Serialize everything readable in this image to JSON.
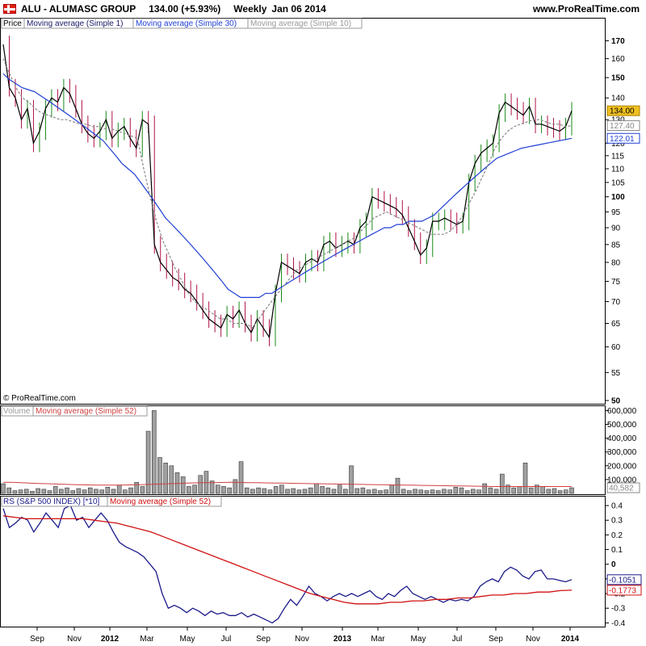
{
  "header": {
    "symbol_line": "ALU - ALUMASC GROUP",
    "price_change": "134.00 (+5.93%)",
    "period": "Weekly",
    "date": "Jan 06 2014",
    "site": "www.ProRealTime.com"
  },
  "watermark": "© ProRealTime.com",
  "legends": {
    "price": [
      "Price",
      "Moving average (Simple 1)",
      "Moving average (Simple 30)",
      "Moving average (Simple 10)"
    ],
    "volume": [
      "Volume",
      "Moving average (Simple 52)"
    ],
    "rs": [
      "RS (S&P 500 INDEX) [*10]",
      "Moving average (Simple 52)"
    ]
  },
  "colors": {
    "up": "#1a8a1a",
    "down": "#b0124a",
    "ma1": "#000000",
    "ma30": "#1f3fd6",
    "ma10": "#888888",
    "rs": "#1a1a8a",
    "rs_ma": "#d01010",
    "vol_bar": "#a0a0a0",
    "vol_ma": "#d04040",
    "last_price_bg": "#f0c020"
  },
  "chart_data": [
    {
      "type": "line",
      "title": "ALU - ALUMASC GROUP",
      "scale": "log",
      "ylim": [
        50,
        175
      ],
      "y_ticks": [
        50,
        55,
        60,
        65,
        70,
        75,
        80,
        85,
        90,
        95,
        100,
        105,
        110,
        115,
        120,
        130,
        140,
        150,
        160,
        170
      ],
      "x_ticks": [
        "Sep",
        "Nov",
        "2012",
        "Mar",
        "May",
        "Jul",
        "Sep",
        "Nov",
        "2013",
        "Mar",
        "May",
        "Jul",
        "Sep",
        "Nov",
        "2014"
      ],
      "last_value_labels": [
        "134.00",
        "127.40",
        "122.01"
      ],
      "series": [
        {
          "name": "Moving average (Simple 1)",
          "values": [
            168,
            145,
            140,
            130,
            135,
            120,
            125,
            135,
            140,
            138,
            145,
            142,
            135,
            128,
            124,
            122,
            125,
            130,
            122,
            125,
            127,
            122,
            118,
            130,
            128,
            85,
            80,
            78,
            76,
            75,
            73,
            72,
            70,
            68,
            66,
            65,
            64,
            67,
            66,
            68,
            65,
            63,
            66,
            64,
            62,
            72,
            80,
            79,
            78,
            77,
            80,
            81,
            80,
            85,
            86,
            84,
            85,
            86,
            85,
            90,
            92,
            100,
            99,
            98,
            97,
            96,
            94,
            90,
            86,
            82,
            84,
            92,
            92,
            93,
            92,
            91,
            92,
            105,
            112,
            116,
            118,
            120,
            133,
            138,
            136,
            134,
            132,
            136,
            128,
            128,
            127,
            126,
            125,
            127,
            134
          ]
        },
        {
          "name": "Moving average (Simple 30)",
          "values": [
            152,
            149,
            147,
            145,
            144,
            143,
            141,
            139,
            137,
            135,
            133,
            131,
            129,
            127,
            125,
            123,
            121,
            118,
            115,
            112,
            110,
            108,
            105,
            102,
            99,
            96,
            93,
            91,
            89,
            87,
            85,
            83,
            81,
            79,
            77,
            75,
            73,
            72,
            71,
            71,
            71,
            71,
            72,
            72,
            73,
            74,
            75,
            76,
            77,
            78,
            79,
            80,
            81,
            82,
            83,
            84,
            85,
            86,
            87,
            88,
            89,
            90,
            90,
            91,
            91,
            92,
            92,
            92,
            93,
            94,
            96,
            98,
            100,
            102,
            104,
            106,
            108,
            110,
            112,
            114,
            115,
            116,
            117,
            118,
            118.5,
            119,
            119.5,
            120,
            120.5,
            121,
            121.5,
            122.01
          ]
        },
        {
          "name": "Moving average (Simple 10)",
          "values": [
            160,
            152,
            145,
            140,
            138,
            135,
            133,
            132,
            131,
            130,
            130,
            129,
            128,
            128,
            127,
            127,
            126,
            126,
            125,
            124,
            123,
            122,
            110,
            100,
            92,
            86,
            82,
            78,
            75,
            72,
            70,
            69,
            68,
            67,
            66,
            66,
            65,
            65,
            65,
            64,
            66,
            68,
            70,
            72,
            74,
            76,
            78,
            79,
            80,
            81,
            82,
            83,
            84,
            85,
            86,
            87,
            89,
            91,
            93,
            94,
            95,
            94,
            93,
            92,
            91,
            90,
            89,
            88,
            88,
            88,
            89,
            91,
            94,
            98,
            102,
            107,
            112,
            118,
            122,
            125,
            127,
            128,
            129,
            130,
            130,
            129,
            128,
            128,
            127,
            127.4
          ]
        }
      ]
    },
    {
      "type": "bar",
      "title": "Volume",
      "ylim": [
        0,
        620000
      ],
      "y_ticks": [
        100000,
        200000,
        300000,
        400000,
        500000,
        600000
      ],
      "y_tick_labels": [
        "100,000",
        "200,000",
        "300,000",
        "400,000",
        "500,000",
        "600,000"
      ],
      "last_value_labels": [
        "40,582"
      ],
      "series": [
        {
          "name": "Volume",
          "values": [
            70000,
            40000,
            20000,
            25000,
            30000,
            15000,
            35000,
            30000,
            20000,
            50000,
            30000,
            40000,
            20000,
            35000,
            25000,
            40000,
            30000,
            25000,
            45000,
            30000,
            60000,
            25000,
            40000,
            80000,
            50000,
            450000,
            600000,
            260000,
            220000,
            200000,
            150000,
            120000,
            50000,
            60000,
            130000,
            160000,
            90000,
            60000,
            50000,
            40000,
            100000,
            230000,
            40000,
            30000,
            40000,
            35000,
            25000,
            50000,
            60000,
            30000,
            35000,
            25000,
            30000,
            40000,
            70000,
            50000,
            40000,
            30000,
            60000,
            30000,
            200000,
            35000,
            40000,
            25000,
            30000,
            20000,
            25000,
            60000,
            110000,
            30000,
            20000,
            30000,
            25000,
            20000,
            25000,
            20000,
            30000,
            25000,
            45000,
            40000,
            20000,
            30000,
            25000,
            70000,
            40000,
            30000,
            140000,
            60000,
            40000,
            50000,
            220000,
            40000,
            60000,
            50000,
            30000,
            35000,
            20000,
            25000,
            40582
          ]
        },
        {
          "name": "Moving average (Simple 52)",
          "values": [
            80000,
            80000,
            78000,
            75000,
            72000,
            70000,
            68000,
            66000,
            64000,
            62000,
            61000,
            60000,
            60000,
            60000,
            61000,
            62000,
            64000,
            66000,
            68000,
            70000,
            72000,
            74000,
            76000,
            77000,
            78000,
            79000,
            80000,
            79000,
            78000,
            77000,
            76000,
            75000,
            74000,
            73000,
            72000,
            71000,
            70000,
            69000,
            68000,
            67000,
            66000,
            65000,
            64000,
            63000,
            62000,
            61000,
            60000,
            59000,
            58000,
            57000,
            56000,
            55000,
            54000,
            53000,
            52000,
            51000,
            50000,
            50000,
            50000,
            50000,
            50000,
            50000,
            50000,
            50000,
            50000,
            50000
          ]
        }
      ]
    },
    {
      "type": "line",
      "title": "RS (S&P 500 INDEX) [*10]",
      "ylim": [
        -0.42,
        0.45
      ],
      "y_ticks": [
        -0.4,
        -0.3,
        -0.2,
        -0.1,
        0,
        0.1,
        0.2,
        0.3,
        0.4
      ],
      "y_tick_labels": [
        "-0.4",
        "-0.3",
        "-0.2",
        "-0.1",
        "0",
        "0.1",
        "0.2",
        "0.3",
        "0.4"
      ],
      "last_value_labels": [
        "-0.1051",
        "-0.1773"
      ],
      "series": [
        {
          "name": "RS (S&P 500 INDEX) [*10]",
          "values": [
            0.38,
            0.25,
            0.28,
            0.32,
            0.3,
            0.22,
            0.28,
            0.35,
            0.3,
            0.25,
            0.38,
            0.4,
            0.3,
            0.32,
            0.25,
            0.3,
            0.35,
            0.3,
            0.22,
            0.15,
            0.12,
            0.1,
            0.08,
            0.05,
            0.0,
            -0.05,
            -0.2,
            -0.3,
            -0.28,
            -0.3,
            -0.33,
            -0.3,
            -0.32,
            -0.35,
            -0.32,
            -0.34,
            -0.33,
            -0.35,
            -0.35,
            -0.33,
            -0.36,
            -0.34,
            -0.36,
            -0.38,
            -0.4,
            -0.37,
            -0.3,
            -0.24,
            -0.28,
            -0.22,
            -0.15,
            -0.2,
            -0.22,
            -0.25,
            -0.22,
            -0.2,
            -0.22,
            -0.2,
            -0.22,
            -0.2,
            -0.18,
            -0.22,
            -0.24,
            -0.2,
            -0.22,
            -0.18,
            -0.15,
            -0.2,
            -0.22,
            -0.24,
            -0.22,
            -0.24,
            -0.26,
            -0.24,
            -0.25,
            -0.24,
            -0.25,
            -0.22,
            -0.15,
            -0.12,
            -0.1,
            -0.12,
            -0.05,
            -0.02,
            -0.04,
            -0.08,
            -0.1,
            -0.05,
            -0.04,
            -0.1,
            -0.1,
            -0.11,
            -0.12,
            -0.1051
          ]
        },
        {
          "name": "Moving average (Simple 52)",
          "values": [
            0.33,
            0.32,
            0.31,
            0.31,
            0.31,
            0.31,
            0.31,
            0.31,
            0.3,
            0.29,
            0.28,
            0.26,
            0.24,
            0.22,
            0.19,
            0.16,
            0.13,
            0.1,
            0.07,
            0.04,
            0.01,
            -0.02,
            -0.05,
            -0.08,
            -0.11,
            -0.14,
            -0.17,
            -0.2,
            -0.22,
            -0.24,
            -0.26,
            -0.27,
            -0.27,
            -0.27,
            -0.26,
            -0.26,
            -0.25,
            -0.25,
            -0.24,
            -0.24,
            -0.23,
            -0.23,
            -0.22,
            -0.21,
            -0.21,
            -0.2,
            -0.2,
            -0.19,
            -0.19,
            -0.18,
            -0.1773
          ]
        }
      ]
    }
  ]
}
